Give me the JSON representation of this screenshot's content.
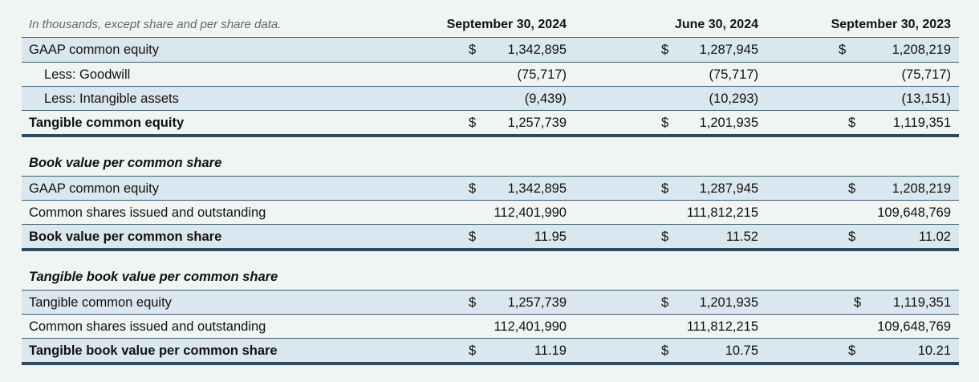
{
  "header": {
    "note": "In thousands, except share and per share data.",
    "columns": [
      "September 30, 2024",
      "June 30, 2024",
      "September 30, 2023"
    ]
  },
  "tce": {
    "rows": [
      {
        "label": "GAAP common equity",
        "dollar": true,
        "values": [
          "1,342,895",
          "1,287,945",
          "1,208,219"
        ]
      },
      {
        "label": "Less: Goodwill",
        "dollar": false,
        "values": [
          "(75,717)",
          "(75,717)",
          "(75,717)"
        ]
      },
      {
        "label": "Less: Intangible assets",
        "dollar": false,
        "values": [
          "(9,439)",
          "(10,293)",
          "(13,151)"
        ]
      },
      {
        "label": "Tangible common equity",
        "dollar": true,
        "values": [
          "1,257,739",
          "1,201,935",
          "1,119,351"
        ]
      }
    ]
  },
  "book_value": {
    "title": "Book value per common share",
    "rows": [
      {
        "label": "GAAP common equity",
        "dollar": true,
        "values": [
          "1,342,895",
          "1,287,945",
          "1,208,219"
        ]
      },
      {
        "label": "Common shares issued and outstanding",
        "dollar": false,
        "values": [
          "112,401,990",
          "111,812,215",
          "109,648,769"
        ]
      },
      {
        "label": "Book value per common share",
        "dollar": true,
        "values": [
          "11.95",
          "11.52",
          "11.02"
        ]
      }
    ]
  },
  "tangible_book_value": {
    "title": "Tangible book value per common share",
    "rows": [
      {
        "label": "Tangible common equity",
        "dollar": true,
        "values": [
          "1,257,739",
          "1,201,935",
          "1,119,351"
        ]
      },
      {
        "label": "Common shares issued and outstanding",
        "dollar": false,
        "values": [
          "112,401,990",
          "111,812,215",
          "109,648,769"
        ]
      },
      {
        "label": "Tangible book value per common share",
        "dollar": true,
        "values": [
          "11.19",
          "10.75",
          "10.21"
        ]
      }
    ]
  },
  "currency_symbol": "$",
  "colors": {
    "background": "#f0f4f2",
    "row_shade": "#dae7ee",
    "rule": "#2e4a5e"
  }
}
